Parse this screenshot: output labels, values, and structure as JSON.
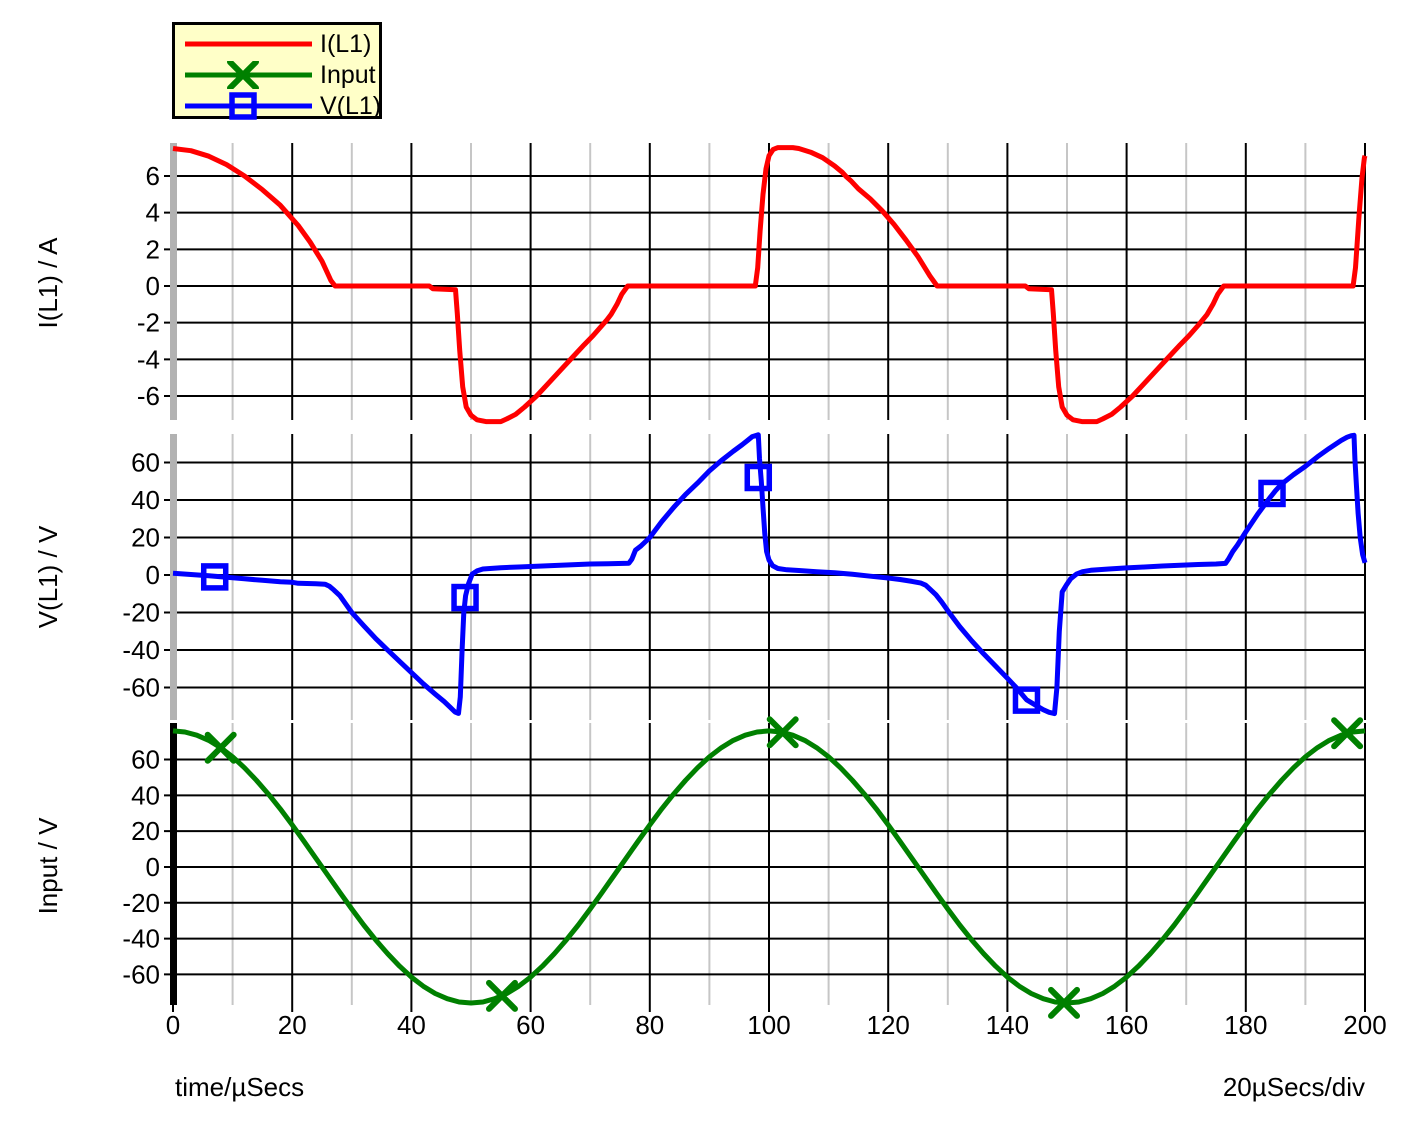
{
  "legend": {
    "items": [
      {
        "label": "I(L1)",
        "color": "#ff0000",
        "marker": "none"
      },
      {
        "label": "Input",
        "color": "#008000",
        "marker": "x"
      },
      {
        "label": "V(L1)",
        "color": "#0000ff",
        "marker": "square"
      }
    ]
  },
  "axes": {
    "x": {
      "label_left": "time/µSecs",
      "label_right": "20µSecs/div",
      "xlim": [
        0,
        200
      ],
      "major_ticks": [
        0,
        20,
        40,
        60,
        80,
        100,
        120,
        140,
        160,
        180,
        200
      ],
      "minor_ticks": [
        10,
        30,
        50,
        70,
        90,
        110,
        130,
        150,
        170,
        190
      ]
    },
    "grid": {
      "major_color": "#000000",
      "minor_color": "#c6c6c6",
      "axis_bar_gray": "#b2b2b2",
      "axis_bar_black": "#000000"
    }
  },
  "chart_data": [
    {
      "type": "line",
      "name": "I(L1)",
      "ylabel": "I(L1) / A",
      "unit": "A",
      "color": "#ff0000",
      "yticks": [
        6,
        4,
        2,
        0,
        -2,
        -4,
        -6
      ],
      "ylim": [
        -7.31,
        7.8
      ],
      "marker_shape": "none",
      "points": [
        [
          0,
          7.5
        ],
        [
          3,
          7.38
        ],
        [
          6,
          7.08
        ],
        [
          9,
          6.62
        ],
        [
          12,
          6.0
        ],
        [
          15,
          5.25
        ],
        [
          18,
          4.4
        ],
        [
          21,
          3.3
        ],
        [
          23,
          2.4
        ],
        [
          25,
          1.35
        ],
        [
          26.5,
          0.3
        ],
        [
          27.2,
          0
        ],
        [
          43,
          0
        ],
        [
          43.6,
          -0.15
        ],
        [
          47.4,
          -0.2
        ],
        [
          47.7,
          -1.5
        ],
        [
          48.1,
          -3.5
        ],
        [
          48.6,
          -5.5
        ],
        [
          49.2,
          -6.6
        ],
        [
          50,
          -7.05
        ],
        [
          51,
          -7.3
        ],
        [
          52.5,
          -7.4
        ],
        [
          55,
          -7.4
        ],
        [
          56,
          -7.25
        ],
        [
          57.5,
          -7.0
        ],
        [
          59,
          -6.6
        ],
        [
          61,
          -6.0
        ],
        [
          63,
          -5.3
        ],
        [
          65,
          -4.6
        ],
        [
          67,
          -3.9
        ],
        [
          69,
          -3.2
        ],
        [
          70.5,
          -2.7
        ],
        [
          72,
          -2.15
        ],
        [
          72.8,
          -1.85
        ],
        [
          73.5,
          -1.55
        ],
        [
          74.5,
          -1.0
        ],
        [
          75.3,
          -0.45
        ],
        [
          76.3,
          0
        ],
        [
          97.7,
          0
        ],
        [
          98.1,
          1.0
        ],
        [
          98.5,
          3.0
        ],
        [
          99,
          5.0
        ],
        [
          99.5,
          6.4
        ],
        [
          100,
          7.1
        ],
        [
          100.7,
          7.45
        ],
        [
          101.5,
          7.55
        ],
        [
          104,
          7.55
        ],
        [
          105,
          7.5
        ],
        [
          107,
          7.3
        ],
        [
          109,
          7.0
        ],
        [
          111,
          6.55
        ],
        [
          112.3,
          6.2
        ],
        [
          113,
          5.95
        ],
        [
          113.7,
          5.75
        ],
        [
          115,
          5.3
        ],
        [
          117,
          4.75
        ],
        [
          119,
          4.1
        ],
        [
          121,
          3.35
        ],
        [
          123,
          2.5
        ],
        [
          125,
          1.6
        ],
        [
          127,
          0.55
        ],
        [
          128.2,
          0
        ],
        [
          143,
          0
        ],
        [
          143.6,
          -0.15
        ],
        [
          147.4,
          -0.2
        ],
        [
          147.7,
          -1.5
        ],
        [
          148.1,
          -3.5
        ],
        [
          148.6,
          -5.5
        ],
        [
          149.2,
          -6.6
        ],
        [
          150,
          -7.05
        ],
        [
          151,
          -7.3
        ],
        [
          152.5,
          -7.4
        ],
        [
          155,
          -7.4
        ],
        [
          156,
          -7.25
        ],
        [
          157.5,
          -7.0
        ],
        [
          159,
          -6.6
        ],
        [
          161,
          -6.0
        ],
        [
          163,
          -5.3
        ],
        [
          165,
          -4.6
        ],
        [
          167,
          -3.9
        ],
        [
          169,
          -3.2
        ],
        [
          170.5,
          -2.7
        ],
        [
          172,
          -2.15
        ],
        [
          173.5,
          -1.55
        ],
        [
          174.5,
          -1.0
        ],
        [
          175.3,
          -0.45
        ],
        [
          176.3,
          0
        ],
        [
          198,
          0
        ],
        [
          198.4,
          1.0
        ],
        [
          199,
          3.8
        ],
        [
          199.5,
          5.9
        ],
        [
          199.9,
          7.0
        ],
        [
          200,
          7.1
        ]
      ],
      "markers": []
    },
    {
      "type": "line",
      "name": "V(L1)",
      "ylabel": "V(L1) / V",
      "unit": "V",
      "color": "#0000ff",
      "yticks": [
        60,
        40,
        20,
        0,
        -20,
        -40,
        -60
      ],
      "ylim": [
        -77.3,
        75.2
      ],
      "marker_shape": "square",
      "points": [
        [
          0,
          1
        ],
        [
          3,
          0.3
        ],
        [
          6,
          -0.4
        ],
        [
          9,
          -1.2
        ],
        [
          12,
          -2.0
        ],
        [
          15,
          -2.8
        ],
        [
          18,
          -3.6
        ],
        [
          20,
          -3.9
        ],
        [
          21,
          -4.4
        ],
        [
          24,
          -4.7
        ],
        [
          25.5,
          -4.9
        ],
        [
          26.2,
          -5.9
        ],
        [
          27,
          -8
        ],
        [
          28,
          -11
        ],
        [
          29,
          -15.5
        ],
        [
          30,
          -20
        ],
        [
          32,
          -27
        ],
        [
          34,
          -33.8
        ],
        [
          36,
          -40
        ],
        [
          38,
          -46
        ],
        [
          40,
          -52
        ],
        [
          42,
          -58
        ],
        [
          44,
          -63.5
        ],
        [
          45.5,
          -67.5
        ],
        [
          46.5,
          -70.5
        ],
        [
          47.3,
          -73
        ],
        [
          47.9,
          -73.8
        ],
        [
          48.2,
          -65
        ],
        [
          48.5,
          -40
        ],
        [
          48.8,
          -20
        ],
        [
          49.1,
          -11
        ],
        [
          49.6,
          -4.5
        ],
        [
          50.2,
          0.5
        ],
        [
          51,
          2.2
        ],
        [
          52,
          3.2
        ],
        [
          55,
          3.9
        ],
        [
          58,
          4.3
        ],
        [
          61,
          4.7
        ],
        [
          64,
          5.1
        ],
        [
          67,
          5.5
        ],
        [
          70,
          5.9
        ],
        [
          73,
          6.0
        ],
        [
          76.5,
          6.3
        ],
        [
          77,
          8.5
        ],
        [
          77.6,
          13.3
        ],
        [
          78.5,
          15.5
        ],
        [
          80,
          20
        ],
        [
          82,
          28.5
        ],
        [
          84,
          36
        ],
        [
          86,
          43
        ],
        [
          88,
          49
        ],
        [
          90,
          55.5
        ],
        [
          92,
          61
        ],
        [
          94,
          66
        ],
        [
          95.5,
          69.5
        ],
        [
          96.5,
          72
        ],
        [
          97.2,
          73.8
        ],
        [
          98.2,
          74.8
        ],
        [
          98.4,
          62
        ],
        [
          98.7,
          50
        ],
        [
          99,
          36
        ],
        [
          99.3,
          22
        ],
        [
          99.6,
          12.5
        ],
        [
          100,
          8
        ],
        [
          100.6,
          5
        ],
        [
          101.5,
          3.5
        ],
        [
          103,
          2.8
        ],
        [
          105,
          2.4
        ],
        [
          108,
          1.8
        ],
        [
          111,
          1.2
        ],
        [
          114,
          0.4
        ],
        [
          117,
          -0.6
        ],
        [
          120,
          -1.6
        ],
        [
          122,
          -2.4
        ],
        [
          124,
          -3.4
        ],
        [
          125.5,
          -4.3
        ],
        [
          126.3,
          -5.4
        ],
        [
          127,
          -7.5
        ],
        [
          128,
          -10.5
        ],
        [
          129,
          -14.5
        ],
        [
          130,
          -19
        ],
        [
          132,
          -27.5
        ],
        [
          134,
          -35
        ],
        [
          136,
          -42
        ],
        [
          138,
          -48.5
        ],
        [
          140,
          -55
        ],
        [
          141.5,
          -60
        ],
        [
          143.2,
          -66.5
        ],
        [
          144.5,
          -69
        ],
        [
          146,
          -71.8
        ],
        [
          147,
          -73.2
        ],
        [
          147.9,
          -73.9
        ],
        [
          148.3,
          -60
        ],
        [
          148.7,
          -30
        ],
        [
          149.2,
          -9
        ],
        [
          149.9,
          -5.3
        ],
        [
          150.6,
          -2
        ],
        [
          151.6,
          0.5
        ],
        [
          152.6,
          1.8
        ],
        [
          154,
          2.5
        ],
        [
          157,
          3.2
        ],
        [
          160,
          3.8
        ],
        [
          163,
          4.3
        ],
        [
          166,
          4.8
        ],
        [
          169,
          5.2
        ],
        [
          172,
          5.6
        ],
        [
          175,
          5.9
        ],
        [
          176.6,
          6.2
        ],
        [
          177.1,
          8.5
        ],
        [
          177.8,
          12.5
        ],
        [
          178.6,
          16
        ],
        [
          180,
          23
        ],
        [
          182,
          32.5
        ],
        [
          184,
          41
        ],
        [
          185,
          45
        ],
        [
          186,
          48.5
        ],
        [
          188,
          53.5
        ],
        [
          190,
          58
        ],
        [
          192,
          63
        ],
        [
          194,
          67.5
        ],
        [
          196,
          71.8
        ],
        [
          197,
          73.5
        ],
        [
          197.7,
          74.3
        ],
        [
          198.15,
          74.5
        ],
        [
          198.3,
          62
        ],
        [
          198.55,
          48
        ],
        [
          198.85,
          33
        ],
        [
          199.2,
          20
        ],
        [
          199.6,
          11
        ],
        [
          200,
          6.5
        ]
      ],
      "markers": [
        [
          7,
          -1
        ],
        [
          49,
          -12
        ],
        [
          98.2,
          52
        ],
        [
          143.2,
          -66.7
        ],
        [
          184.4,
          43.5
        ]
      ]
    },
    {
      "type": "line",
      "name": "Input",
      "ylabel": "Input / V",
      "unit": "V",
      "color": "#008000",
      "yticks": [
        60,
        40,
        20,
        0,
        -20,
        -40,
        -60
      ],
      "ylim": [
        -77.1,
        80.4
      ],
      "marker_shape": "x",
      "sine_note": "76*cos(2*pi*t/100)",
      "x_start": 0,
      "x_step": 2,
      "values": [
        76,
        75.4,
        73.6,
        70.7,
        66.6,
        61.5,
        55.4,
        48.4,
        40.7,
        32.4,
        23.5,
        14.2,
        4.8,
        -4.8,
        -14.2,
        -23.5,
        -32.4,
        -40.7,
        -48.4,
        -55.4,
        -61.5,
        -66.6,
        -70.7,
        -73.6,
        -75.4,
        -76,
        -75.4,
        -73.6,
        -70.7,
        -66.6,
        -61.5,
        -55.4,
        -48.4,
        -40.7,
        -32.4,
        -23.5,
        -14.2,
        -4.8,
        4.8,
        14.2,
        23.5,
        32.4,
        40.7,
        48.4,
        55.4,
        61.5,
        66.6,
        70.7,
        73.6,
        75.4,
        76,
        75.4,
        73.6,
        70.7,
        66.6,
        61.5,
        55.4,
        48.4,
        40.7,
        32.4,
        23.5,
        14.2,
        4.8,
        -4.8,
        -14.2,
        -23.5,
        -32.4,
        -40.7,
        -48.4,
        -55.4,
        -61.5,
        -66.6,
        -70.7,
        -73.6,
        -75.4,
        -76,
        -75.4,
        -73.6,
        -70.7,
        -66.6,
        -61.5,
        -55.4,
        -48.4,
        -40.7,
        -32.4,
        -23.5,
        -14.2,
        -4.8,
        4.8,
        14.2,
        23.5,
        32.4,
        40.7,
        48.4,
        55.4,
        61.5,
        66.6,
        70.7,
        73.6,
        75.4,
        76
      ],
      "markers": [
        [
          8,
          66.6
        ],
        [
          55.2,
          -72
        ],
        [
          102.3,
          75.2
        ],
        [
          149.5,
          -75.9
        ],
        [
          197,
          74.7
        ]
      ]
    }
  ]
}
